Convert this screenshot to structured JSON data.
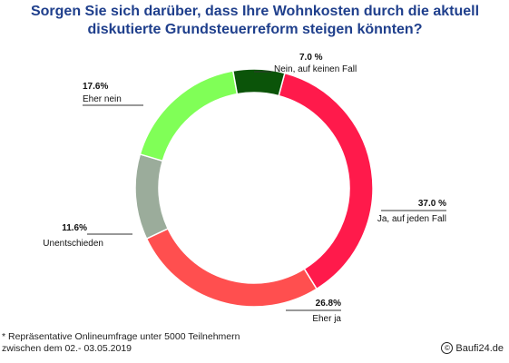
{
  "title_line1": "Sorgen Sie sich darüber, dass Ihre Wohnkosten durch die aktuell",
  "title_line2": "diskutierte Grundsteuerreform steigen könnten?",
  "footnote_line1": "* Repräsentative Onlineumfrage unter 5000 Teilnehmern",
  "footnote_line2": "zwischen dem 02.- 03.05.2019",
  "credit_text": "Baufi24.de",
  "credit_icon": "copyright-icon",
  "chart_data": {
    "type": "pie",
    "variant": "donut",
    "title": "Sorgen Sie sich darüber, dass Ihre Wohnkosten durch die aktuell diskutierte Grundsteuerreform steigen könnten?",
    "slices": [
      {
        "label": "Ja, auf jeden Fall",
        "value": 37.0,
        "value_label": "37.0 %",
        "color": "#ff1a4b"
      },
      {
        "label": "Eher ja",
        "value": 26.8,
        "value_label": "26.8%",
        "color": "#ff4f4f"
      },
      {
        "label": "Unentschieden",
        "value": 11.6,
        "value_label": "11.6%",
        "color": "#9bac9b"
      },
      {
        "label": "Eher nein",
        "value": 17.6,
        "value_label": "17.6%",
        "color": "#80ff57"
      },
      {
        "label": "Nein, auf keinen Fall",
        "value": 7.0,
        "value_label": "7.0 %",
        "color": "#0b5409"
      }
    ]
  }
}
